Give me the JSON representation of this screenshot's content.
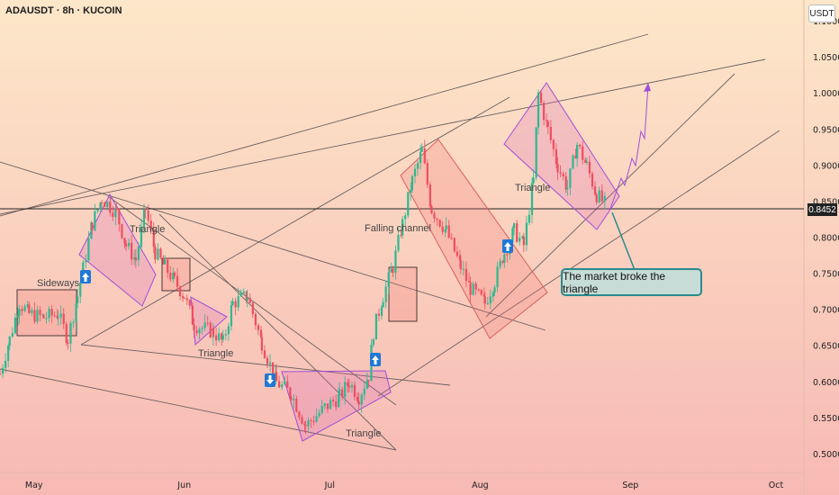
{
  "header": {
    "title": "ADAUSDT · 8h · KUCOIN",
    "currency": "USDT"
  },
  "colors": {
    "up": "#2db890",
    "down": "#ef4d5e",
    "pattern_fill": "rgba(215,90,180,0.22)",
    "pattern_stroke": "#a04fd8",
    "channel_fill": "rgba(240,110,110,0.22)",
    "channel_stroke": "#d9605f",
    "box_stroke": "#3a2a2a",
    "line": "#6b6060",
    "callout_border": "#2b8a8e",
    "arrow": "#1e78d6"
  },
  "current_price": {
    "label": "0.8452",
    "value": 0.8452
  },
  "callout": {
    "text": "The market broke the triangle"
  },
  "chart_data": {
    "type": "candlestick",
    "ylim": [
      0.475,
      1.13
    ],
    "y_ticks": [
      "1.1000",
      "1.0500",
      "1.0000",
      "0.9500",
      "0.9000",
      "0.8500",
      "0.8000",
      "0.7500",
      "0.7000",
      "0.6500",
      "0.6000",
      "0.5500",
      "0.5000"
    ],
    "x_ticks": [
      "May",
      "Jun",
      "Jul",
      "Aug",
      "Sep",
      "Oct"
    ],
    "grid": false,
    "annotations": [
      "Sideways",
      "Triangle",
      "Triangle",
      "Triangle",
      "Falling channel",
      "Triangle",
      "The market broke the triangle"
    ],
    "close_path": [
      {
        "date": "Apr 24",
        "value": 0.612
      },
      {
        "date": "Apr 26",
        "value": 0.66
      },
      {
        "date": "Apr 28",
        "value": 0.71
      },
      {
        "date": "Apr 30",
        "value": 0.695
      },
      {
        "date": "May 3",
        "value": 0.69
      },
      {
        "date": "May 6",
        "value": 0.695
      },
      {
        "date": "May 8",
        "value": 0.66
      },
      {
        "date": "May 10",
        "value": 0.72
      },
      {
        "date": "May 13",
        "value": 0.82
      },
      {
        "date": "May 15",
        "value": 0.855
      },
      {
        "date": "May 18",
        "value": 0.835
      },
      {
        "date": "May 20",
        "value": 0.79
      },
      {
        "date": "May 22",
        "value": 0.77
      },
      {
        "date": "May 24",
        "value": 0.84
      },
      {
        "date": "May 26",
        "value": 0.78
      },
      {
        "date": "May 28",
        "value": 0.76
      },
      {
        "date": "May 30",
        "value": 0.74
      },
      {
        "date": "Jun 1",
        "value": 0.72
      },
      {
        "date": "Jun 3",
        "value": 0.68
      },
      {
        "date": "Jun 7",
        "value": 0.67
      },
      {
        "date": "Jun 9",
        "value": 0.655
      },
      {
        "date": "Jun 11",
        "value": 0.71
      },
      {
        "date": "Jun 14",
        "value": 0.72
      },
      {
        "date": "Jun 17",
        "value": 0.655
      },
      {
        "date": "Jun 20",
        "value": 0.6
      },
      {
        "date": "Jun 23",
        "value": 0.585
      },
      {
        "date": "Jun 26",
        "value": 0.54
      },
      {
        "date": "Jun 30",
        "value": 0.565
      },
      {
        "date": "Jul 3",
        "value": 0.58
      },
      {
        "date": "Jul 5",
        "value": 0.6
      },
      {
        "date": "Jul 7",
        "value": 0.58
      },
      {
        "date": "Jul 9",
        "value": 0.61
      },
      {
        "date": "Jul 10",
        "value": 0.67
      },
      {
        "date": "Jul 12",
        "value": 0.72
      },
      {
        "date": "Jul 14",
        "value": 0.76
      },
      {
        "date": "Jul 16",
        "value": 0.82
      },
      {
        "date": "Jul 18",
        "value": 0.88
      },
      {
        "date": "Jul 20",
        "value": 0.92
      },
      {
        "date": "Jul 22",
        "value": 0.84
      },
      {
        "date": "Jul 25",
        "value": 0.81
      },
      {
        "date": "Jul 28",
        "value": 0.76
      },
      {
        "date": "Jul 30",
        "value": 0.73
      },
      {
        "date": "Aug 2",
        "value": 0.71
      },
      {
        "date": "Aug 4",
        "value": 0.74
      },
      {
        "date": "Aug 6",
        "value": 0.78
      },
      {
        "date": "Aug 8",
        "value": 0.81
      },
      {
        "date": "Aug 10",
        "value": 0.79
      },
      {
        "date": "Aug 12",
        "value": 0.88
      },
      {
        "date": "Aug 13",
        "value": 1.0
      },
      {
        "date": "Aug 15",
        "value": 0.95
      },
      {
        "date": "Aug 17",
        "value": 0.9
      },
      {
        "date": "Aug 19",
        "value": 0.87
      },
      {
        "date": "Aug 21",
        "value": 0.93
      },
      {
        "date": "Aug 23",
        "value": 0.9
      },
      {
        "date": "Aug 25",
        "value": 0.86
      },
      {
        "date": "Aug 27",
        "value": 0.8452
      }
    ]
  }
}
